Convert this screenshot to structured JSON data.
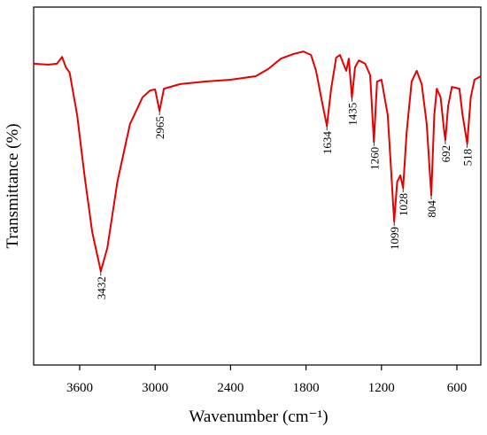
{
  "chart_data": {
    "type": "line",
    "xlabel": "Wavenumber (cm⁻¹)",
    "ylabel": "Transmittance (%)",
    "xlim": [
      3966,
      410
    ],
    "xticks": [
      3600,
      3000,
      2400,
      1800,
      1200,
      600
    ],
    "ylim": [
      0,
      100
    ],
    "series": [
      {
        "color": "#e60000",
        "x": [
          3966,
          3850,
          3780,
          3740,
          3710,
          3680,
          3620,
          3560,
          3500,
          3432,
          3380,
          3300,
          3200,
          3100,
          3040,
          3000,
          2965,
          2930,
          2800,
          2600,
          2400,
          2200,
          2100,
          2000,
          1900,
          1820,
          1760,
          1720,
          1680,
          1634,
          1600,
          1560,
          1530,
          1480,
          1460,
          1435,
          1410,
          1380,
          1330,
          1290,
          1260,
          1235,
          1200,
          1150,
          1120,
          1099,
          1075,
          1050,
          1028,
          1000,
          960,
          920,
          880,
          840,
          804,
          780,
          760,
          730,
          700,
          692,
          670,
          640,
          580,
          555,
          518,
          490,
          460,
          410
        ],
        "values": [
          84.2,
          83.9,
          84.2,
          86.1,
          83.2,
          81.7,
          69.8,
          52.5,
          37.1,
          26.2,
          32.7,
          51.2,
          67.3,
          74.8,
          76.7,
          77,
          71,
          77.2,
          78.5,
          79.2,
          79.7,
          80.7,
          82.7,
          85.6,
          86.9,
          87.6,
          86.6,
          82.2,
          74.8,
          66.8,
          77.2,
          85.9,
          86.6,
          82.2,
          85.6,
          74.8,
          83.2,
          85.1,
          84.2,
          81,
          62.4,
          79.2,
          79.7,
          69.8,
          52.5,
          40.1,
          51.2,
          53.0,
          49.5,
          64.9,
          79.2,
          82.2,
          78.5,
          67.3,
          47.5,
          69.8,
          77.2,
          74.8,
          64.9,
          62.9,
          72.3,
          77.7,
          77.2,
          69.8,
          61.9,
          74.8,
          79.7,
          80.7
        ]
      }
    ],
    "annotations": [
      {
        "text": "3432",
        "x": 3432
      },
      {
        "text": "2965",
        "x": 2965
      },
      {
        "text": "1634",
        "x": 1634
      },
      {
        "text": "1435",
        "x": 1435
      },
      {
        "text": "1260",
        "x": 1260
      },
      {
        "text": "1099",
        "x": 1099
      },
      {
        "text": "1028",
        "x": 1028
      },
      {
        "text": "804",
        "x": 804
      },
      {
        "text": "692",
        "x": 692
      },
      {
        "text": "518",
        "x": 518
      }
    ]
  }
}
